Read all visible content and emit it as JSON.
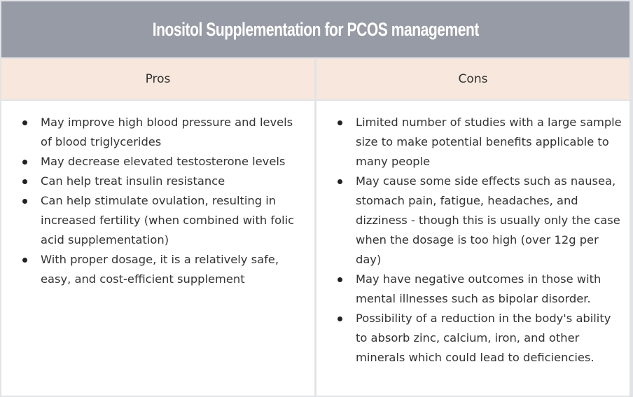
{
  "title": "Inositol Supplementation for PCOS management",
  "columns": {
    "pros": {
      "header": "Pros",
      "items": [
        "May improve high blood pressure and levels of blood triglycerides",
        "May decrease elevated testosterone levels",
        "Can help treat insulin resistance",
        "Can help stimulate ovulation, resulting in increased fertility (when combined with folic acid supplementation)",
        "With proper dosage, it is a relatively safe, easy, and cost-efficient supplement"
      ]
    },
    "cons": {
      "header": "Cons",
      "items": [
        "Limited number of  studies with a large sample size to make potential benefits applicable to many people",
        "May cause some side effects such as nausea, stomach pain, fatigue, headaches, and dizziness - though this is usually only the case when the dosage is too high (over 12g per day)",
        "May have negative outcomes in those with mental illnesses such as bipolar disorder.",
        "Possibility of a reduction in the body's ability to absorb zinc, calcium, iron, and other minerals which could lead to deficiencies."
      ]
    }
  },
  "colors": {
    "title_bg": "#979ba5",
    "header_bg": "#f8e7dc",
    "border": "#e2e3e6",
    "text": "#333333"
  }
}
